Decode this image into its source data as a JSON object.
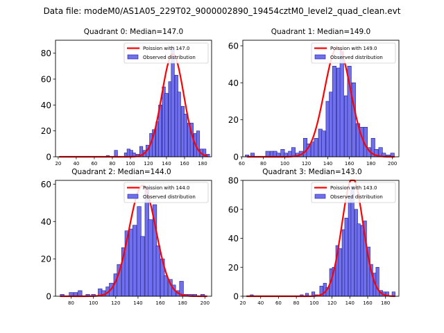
{
  "figure_title": "Data file: modeM0/AS1A05_229T02_9000002890_19454cztM0_level2_quad_clean.evt",
  "chart_data": [
    {
      "type": "bar",
      "title": "Quadrant 0: Median=147.0",
      "median": 147.0,
      "bin_width": 3.5,
      "xlim": [
        17,
        190
      ],
      "ylim": [
        0,
        90
      ],
      "xticks": [
        20,
        40,
        60,
        80,
        100,
        120,
        140,
        160,
        180
      ],
      "yticks": [
        0,
        20,
        40,
        60,
        80
      ],
      "legend": {
        "fit": "Poission with 147.0",
        "observed": "Observed distribution",
        "placement": "upper right"
      },
      "bins": [
        [
          75,
          1
        ],
        [
          84,
          5
        ],
        [
          95,
          3
        ],
        [
          98,
          6
        ],
        [
          101,
          5
        ],
        [
          104,
          3
        ],
        [
          108,
          2
        ],
        [
          112,
          8
        ],
        [
          116,
          5
        ],
        [
          119,
          9
        ],
        [
          123,
          18
        ],
        [
          126,
          21
        ],
        [
          130,
          27
        ],
        [
          133,
          40
        ],
        [
          137,
          54
        ],
        [
          140,
          49
        ],
        [
          144,
          58
        ],
        [
          147,
          85
        ],
        [
          151,
          63
        ],
        [
          154,
          50
        ],
        [
          158,
          39
        ],
        [
          161,
          33
        ],
        [
          165,
          26
        ],
        [
          168,
          26
        ],
        [
          172,
          18
        ],
        [
          175,
          20
        ],
        [
          179,
          6
        ],
        [
          182,
          6
        ],
        [
          186,
          2
        ]
      ]
    },
    {
      "type": "bar",
      "title": "Quadrant 1: Median=149.0",
      "median": 149.0,
      "bin_width": 3.5,
      "xlim": [
        61,
        206
      ],
      "ylim": [
        0,
        63
      ],
      "xticks": [
        60,
        80,
        100,
        120,
        140,
        160,
        180,
        200
      ],
      "yticks": [
        0,
        20,
        40,
        60
      ],
      "legend": {
        "fit": "Poission with 149.0",
        "observed": "Observed distribution",
        "placement": "upper right"
      },
      "bins": [
        [
          65,
          1
        ],
        [
          70,
          2
        ],
        [
          84,
          3
        ],
        [
          88,
          3
        ],
        [
          91,
          3
        ],
        [
          94,
          2
        ],
        [
          98,
          4
        ],
        [
          101,
          2
        ],
        [
          105,
          3
        ],
        [
          108,
          5
        ],
        [
          112,
          2
        ],
        [
          115,
          3
        ],
        [
          119,
          10
        ],
        [
          122,
          7
        ],
        [
          126,
          8
        ],
        [
          129,
          10
        ],
        [
          133,
          15
        ],
        [
          136,
          14
        ],
        [
          140,
          30
        ],
        [
          143,
          35
        ],
        [
          146,
          49
        ],
        [
          150,
          48
        ],
        [
          153,
          57
        ],
        [
          157,
          33
        ],
        [
          160,
          49
        ],
        [
          164,
          40
        ],
        [
          168,
          18
        ],
        [
          171,
          16
        ],
        [
          175,
          16
        ],
        [
          178,
          5
        ],
        [
          182,
          10
        ],
        [
          185,
          4
        ],
        [
          189,
          5
        ],
        [
          192,
          2
        ],
        [
          196,
          1
        ],
        [
          200,
          2
        ]
      ]
    },
    {
      "type": "bar",
      "title": "Quadrant 2: Median=144.0",
      "median": 144.0,
      "bin_width": 3.5,
      "xlim": [
        66,
        206
      ],
      "ylim": [
        0,
        62
      ],
      "xticks": [
        80,
        100,
        120,
        140,
        160,
        180,
        200
      ],
      "yticks": [
        0,
        20,
        40,
        60
      ],
      "legend": {
        "fit": "Poission with 144.0",
        "observed": "Observed distribution",
        "placement": "upper right"
      },
      "bins": [
        [
          72,
          1
        ],
        [
          80,
          2
        ],
        [
          84,
          2
        ],
        [
          88,
          3
        ],
        [
          95,
          1
        ],
        [
          100,
          1
        ],
        [
          106,
          4
        ],
        [
          109,
          3
        ],
        [
          113,
          5
        ],
        [
          116,
          7
        ],
        [
          120,
          12
        ],
        [
          123,
          17
        ],
        [
          127,
          26
        ],
        [
          130,
          35
        ],
        [
          134,
          36
        ],
        [
          137,
          38
        ],
        [
          141,
          48
        ],
        [
          144,
          32
        ],
        [
          148,
          58
        ],
        [
          151,
          41
        ],
        [
          155,
          49
        ],
        [
          158,
          27
        ],
        [
          162,
          20
        ],
        [
          165,
          11
        ],
        [
          169,
          9
        ],
        [
          172,
          6
        ],
        [
          176,
          3
        ],
        [
          179,
          8
        ],
        [
          183,
          1
        ],
        [
          187,
          1
        ],
        [
          191,
          1
        ],
        [
          198,
          1
        ]
      ]
    },
    {
      "type": "bar",
      "title": "Quadrant 3: Median=143.0",
      "median": 143.0,
      "bin_width": 3.5,
      "xlim": [
        20,
        195
      ],
      "ylim": [
        0,
        80
      ],
      "xticks": [
        20,
        40,
        60,
        80,
        100,
        120,
        140,
        160,
        180
      ],
      "yticks": [
        0,
        20,
        40,
        60,
        80
      ],
      "legend": {
        "fit": "Poission with 143.0",
        "observed": "Observed distribution",
        "placement": "upper right"
      },
      "bins": [
        [
          30,
          1
        ],
        [
          86,
          1
        ],
        [
          92,
          2
        ],
        [
          99,
          3
        ],
        [
          103,
          1
        ],
        [
          108,
          7
        ],
        [
          112,
          9
        ],
        [
          115,
          6
        ],
        [
          119,
          19
        ],
        [
          122,
          20
        ],
        [
          126,
          35
        ],
        [
          129,
          33
        ],
        [
          133,
          46
        ],
        [
          136,
          54
        ],
        [
          140,
          69
        ],
        [
          143,
          76
        ],
        [
          147,
          60
        ],
        [
          150,
          50
        ],
        [
          154,
          49
        ],
        [
          157,
          52
        ],
        [
          161,
          34
        ],
        [
          164,
          22
        ],
        [
          168,
          16
        ],
        [
          171,
          20
        ],
        [
          175,
          4
        ],
        [
          178,
          3
        ],
        [
          182,
          3
        ],
        [
          189,
          3
        ]
      ]
    }
  ]
}
